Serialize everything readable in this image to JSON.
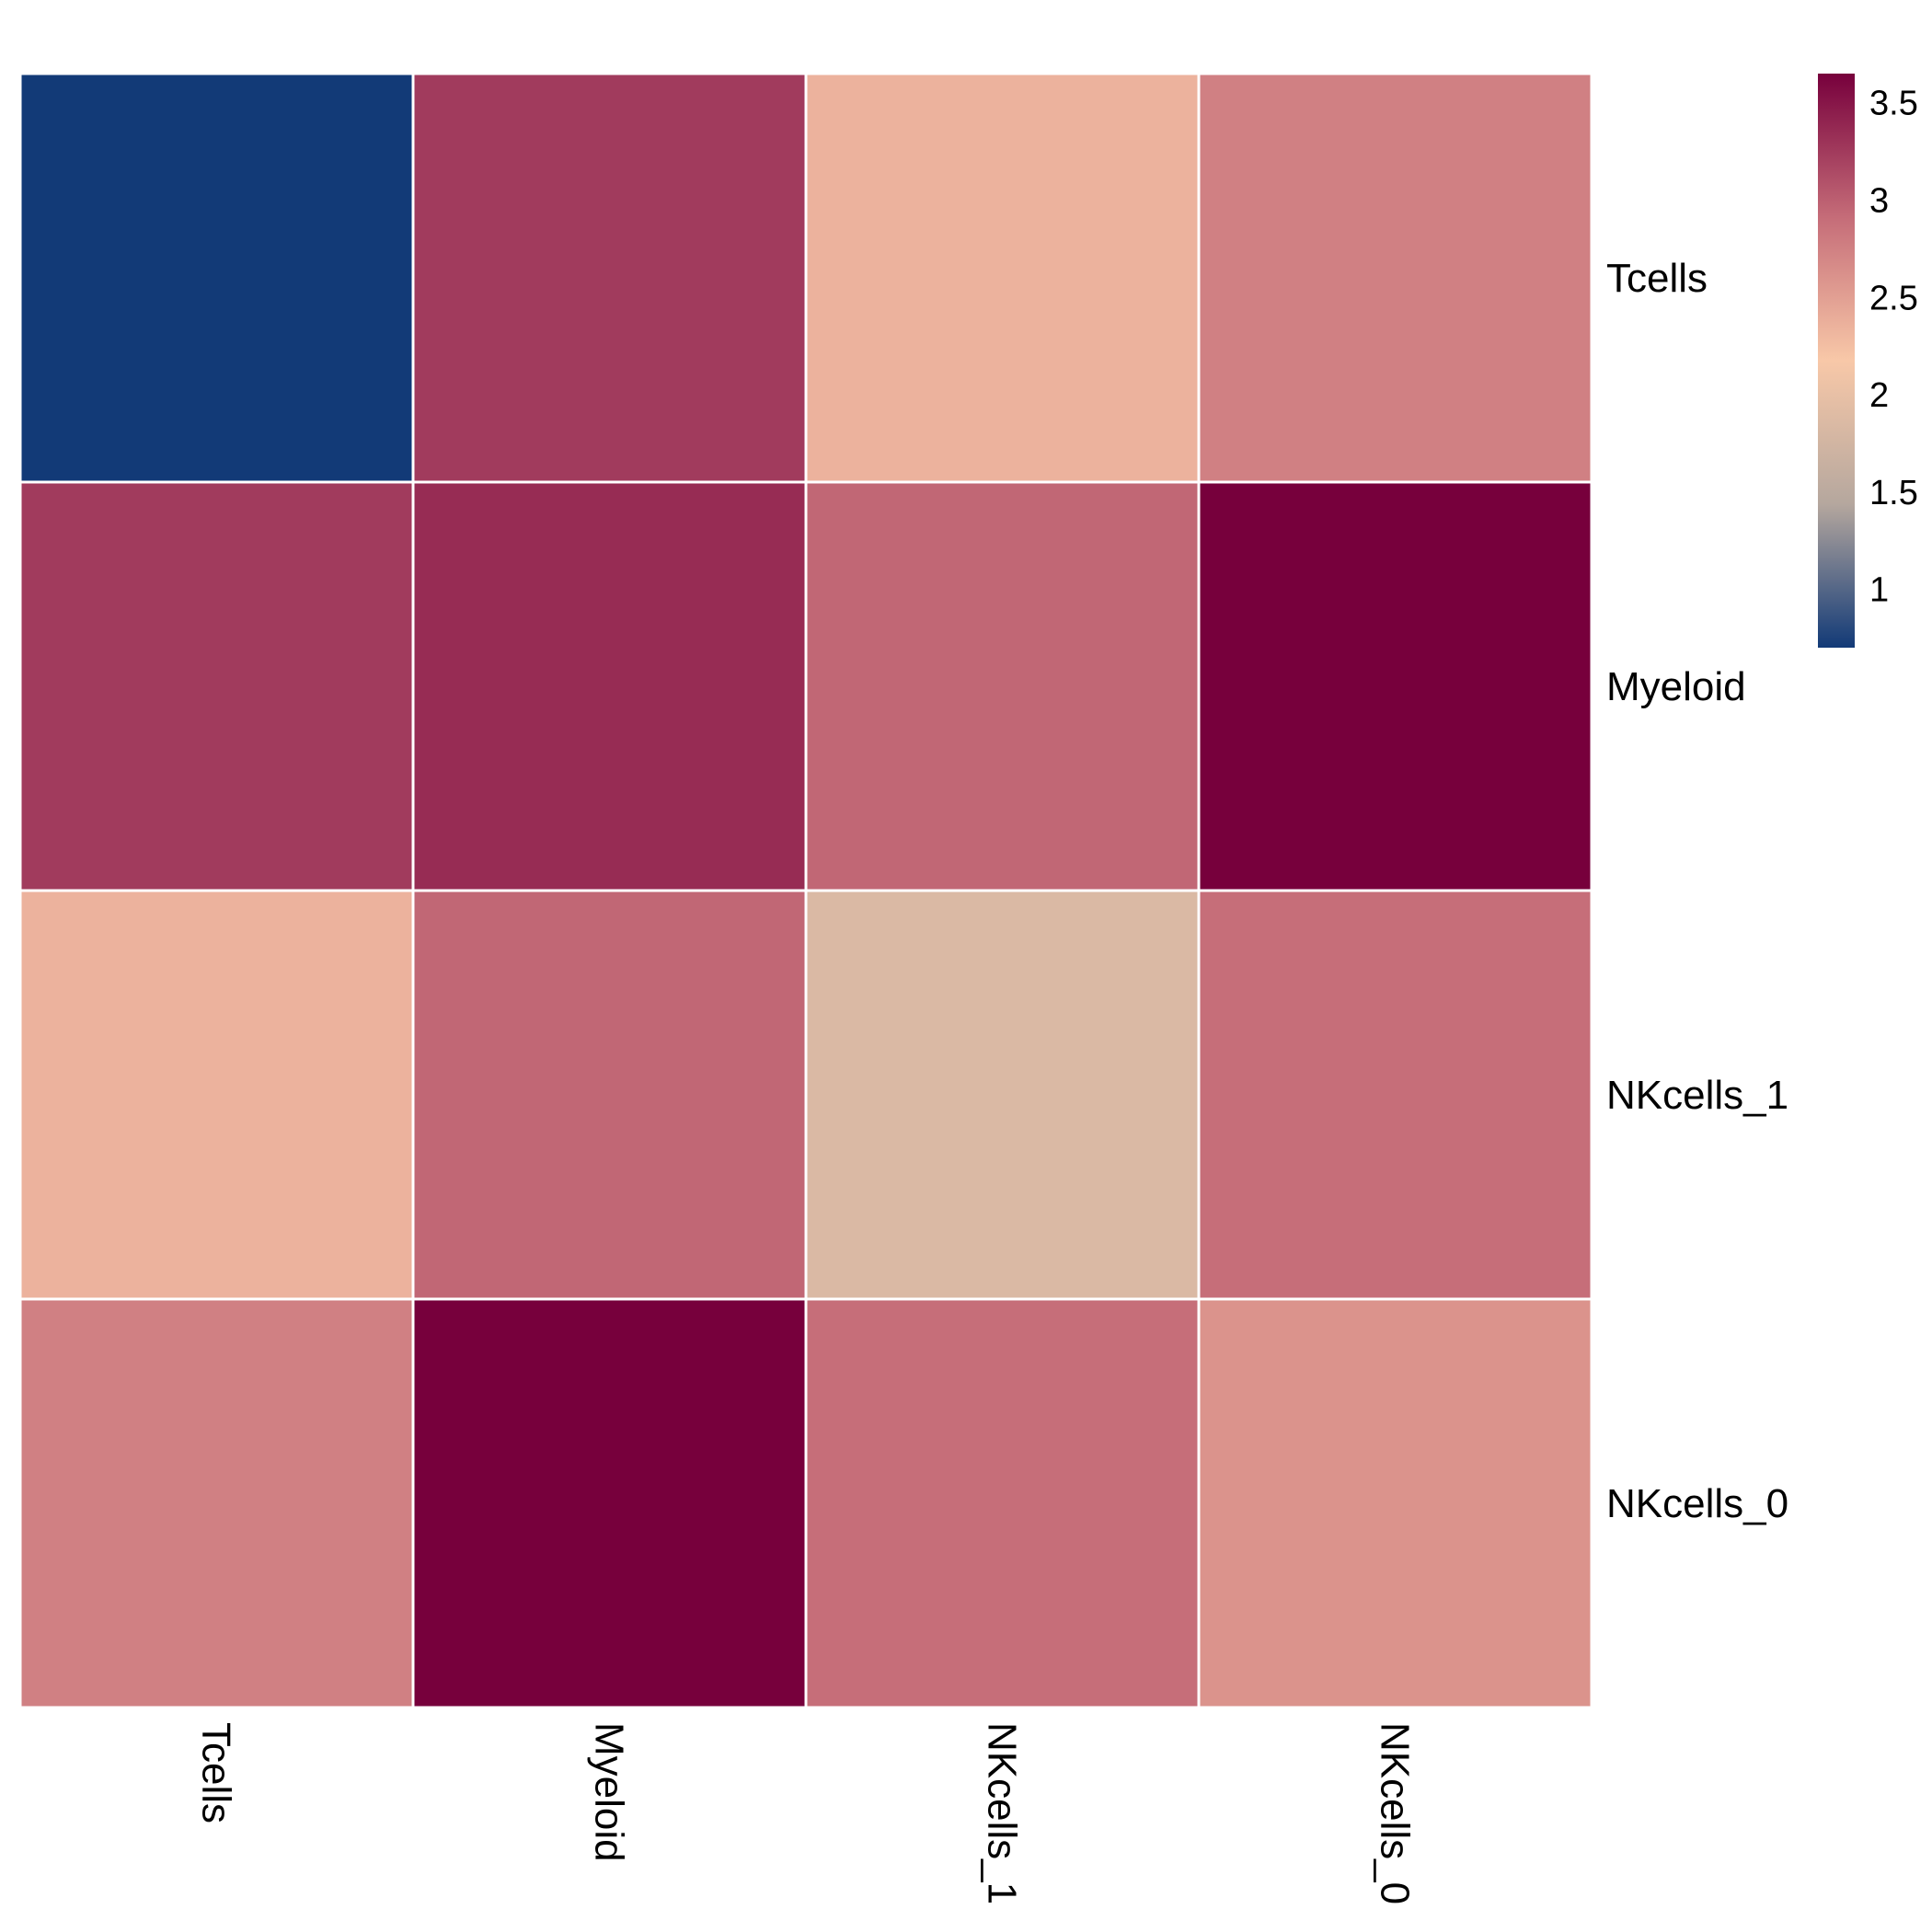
{
  "chart_data": {
    "type": "heatmap",
    "title": "",
    "xlabel": "",
    "ylabel": "",
    "rows": [
      "Tcells",
      "Myeloid",
      "NKcells_1",
      "NKcells_0"
    ],
    "columns": [
      "Tcells",
      "Myeloid",
      "NKcells_1",
      "NKcells_0"
    ],
    "values": [
      [
        0.7,
        3.25,
        2.35,
        2.75
      ],
      [
        3.25,
        3.35,
        2.95,
        3.65
      ],
      [
        2.35,
        2.95,
        1.85,
        2.9
      ],
      [
        2.75,
        3.65,
        2.9,
        2.6
      ]
    ],
    "colorbar": {
      "min": 0.7,
      "max": 3.65,
      "ticks": [
        1,
        1.5,
        2,
        2.5,
        3,
        3.5
      ],
      "tick_labels": [
        "1",
        "1.5",
        "2",
        "2.5",
        "3",
        "3.5"
      ],
      "colors": [
        "#123a77",
        "#b5a79e",
        "#f8c8a8",
        "#c56c78",
        "#77003c"
      ]
    },
    "legend": "right",
    "grid": false
  }
}
